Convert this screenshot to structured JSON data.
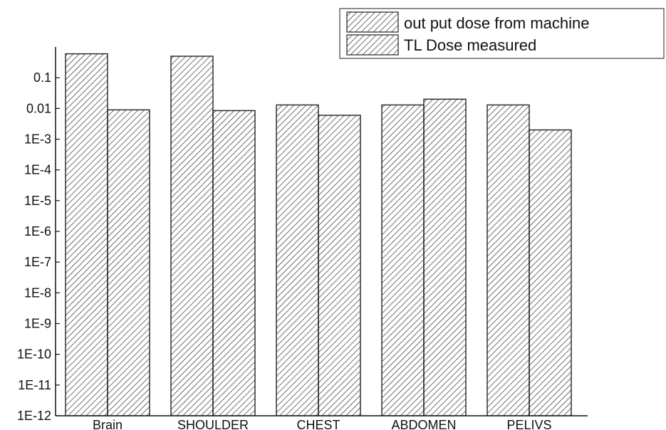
{
  "chart_data": {
    "type": "bar",
    "y_scale": "log",
    "ylim": [
      1e-12,
      1
    ],
    "y_tick_values": [
      1e-12,
      1e-11,
      1e-10,
      1e-09,
      1e-08,
      1e-07,
      1e-06,
      1e-05,
      0.0001,
      0.001,
      0.01,
      0.1
    ],
    "y_tick_labels": [
      "1E-12",
      "1E-11",
      "1E-10",
      "1E-9",
      "1E-8",
      "1E-7",
      "1E-6",
      "1E-5",
      "1E-4",
      "1E-3",
      "0.01",
      "0.1"
    ],
    "categories": [
      "Brain",
      "SHOULDER",
      "CHEST",
      "ABDOMEN",
      "PELIVS"
    ],
    "series": [
      {
        "name": "out put dose from machine",
        "values": [
          0.6,
          0.5,
          0.013,
          0.013,
          0.013
        ]
      },
      {
        "name": "TL Dose measured",
        "values": [
          0.009,
          0.0085,
          0.006,
          0.02,
          0.002
        ]
      }
    ],
    "legend_position": "top-right",
    "grid": false,
    "bar_fill": "diagonal-hatch",
    "colors": {
      "bar_stroke": "#222222",
      "hatch": "#333333",
      "axis": "#111111"
    }
  }
}
